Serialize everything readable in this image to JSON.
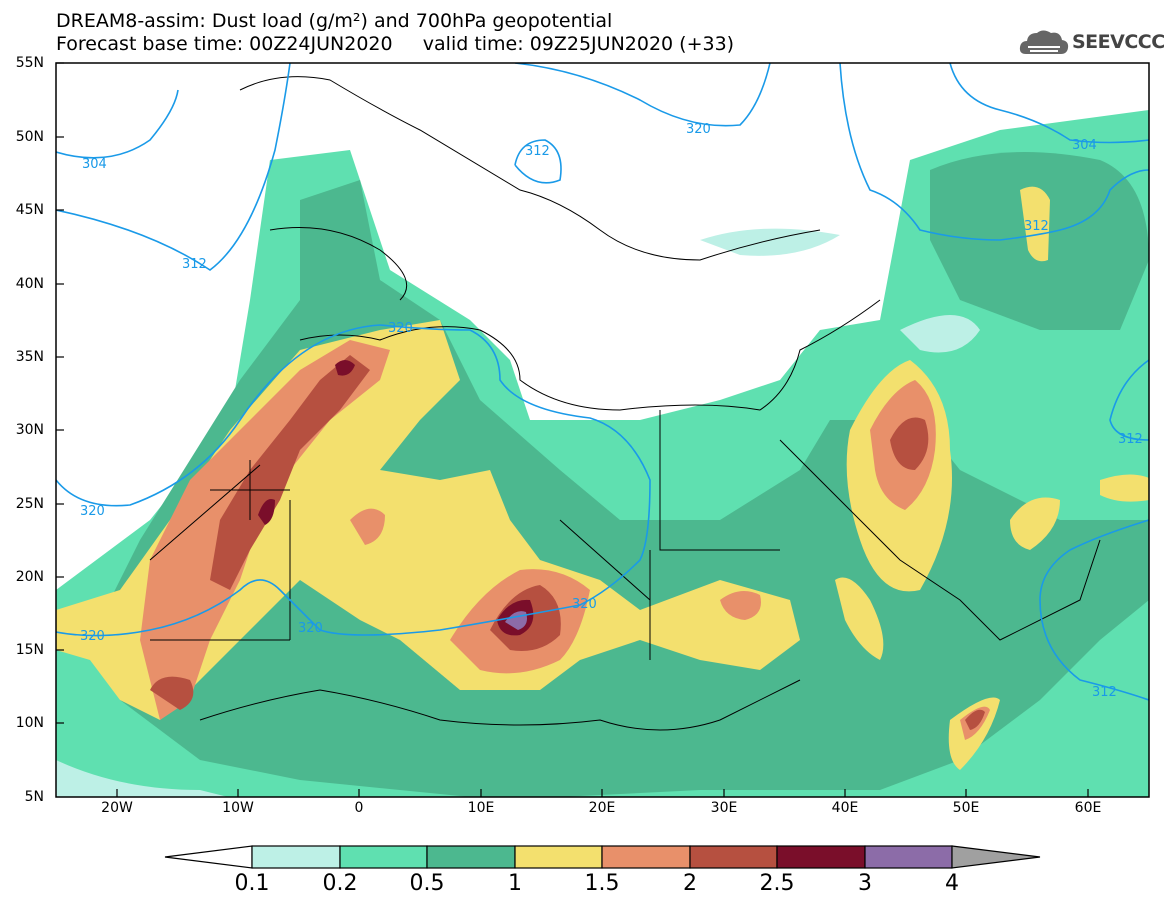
{
  "header": {
    "title_line1": "DREAM8-assim: Dust load (g/m²) and 700hPa geopotential",
    "title_line2": "Forecast base time: 00Z24JUN2020     valid time: 09Z25JUN2020 (+33)"
  },
  "logo": {
    "text": "SEEVCCC",
    "icon": "cloud-icon"
  },
  "axes": {
    "lat_labels": [
      "55N",
      "50N",
      "45N",
      "40N",
      "35N",
      "30N",
      "25N",
      "20N",
      "15N",
      "10N",
      "5N"
    ],
    "lon_labels": [
      "20W",
      "10W",
      "0",
      "10E",
      "20E",
      "30E",
      "40E",
      "50E",
      "60E"
    ]
  },
  "contours": [
    "304",
    "304",
    "312",
    "312",
    "312",
    "312",
    "312",
    "320",
    "320",
    "320",
    "320",
    "320",
    "320"
  ],
  "colorbar": {
    "labels": [
      "0.1",
      "0.2",
      "0.5",
      "1",
      "1.5",
      "2",
      "2.5",
      "3",
      "4"
    ],
    "colors": [
      "#ffffff",
      "#bdf0e6",
      "#5fe0b0",
      "#4cb88f",
      "#f3e06e",
      "#e8906a",
      "#b65040",
      "#7a0e2a",
      "#8c6ca8",
      "#a0a0a0"
    ]
  },
  "colors": {
    "contour_line": "#1a9ae8",
    "border": "#000000"
  }
}
